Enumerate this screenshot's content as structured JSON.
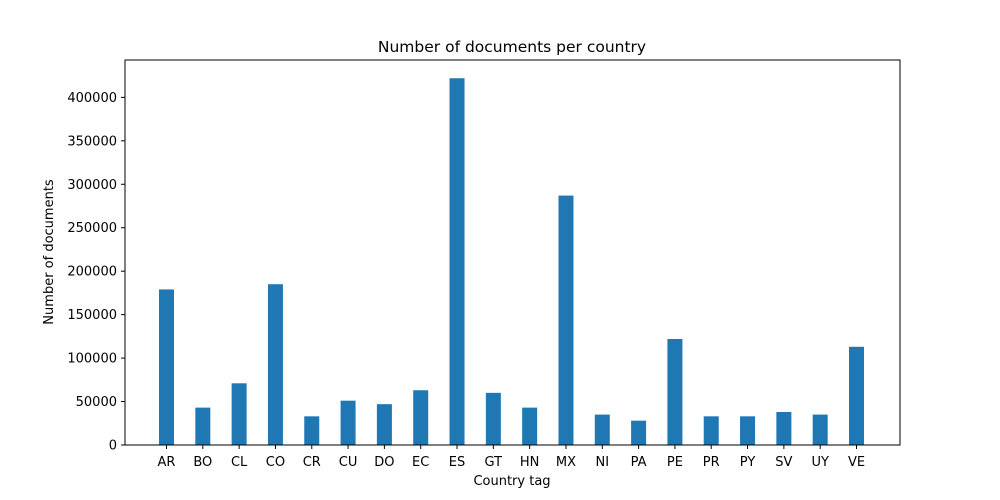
{
  "chart_data": {
    "type": "bar",
    "title": "Number of documents per country",
    "xlabel": "Country tag",
    "ylabel": "Number of documents",
    "categories": [
      "AR",
      "BO",
      "CL",
      "CO",
      "CR",
      "CU",
      "DO",
      "EC",
      "ES",
      "GT",
      "HN",
      "MX",
      "NI",
      "PA",
      "PE",
      "PR",
      "PY",
      "SV",
      "UY",
      "VE"
    ],
    "values": [
      179000,
      43000,
      71000,
      185000,
      33000,
      51000,
      47000,
      63000,
      422000,
      60000,
      43000,
      287000,
      35000,
      28000,
      122000,
      33000,
      33000,
      38000,
      35000,
      113000
    ],
    "ylim": [
      0,
      443000
    ],
    "yticks": [
      0,
      50000,
      100000,
      150000,
      200000,
      250000,
      300000,
      350000,
      400000
    ],
    "ytick_labels": [
      "0",
      "50000",
      "100000",
      "150000",
      "200000",
      "250000",
      "300000",
      "350000",
      "400000"
    ],
    "bar_color": "#1f77b4",
    "grid": false,
    "legend": "none"
  }
}
